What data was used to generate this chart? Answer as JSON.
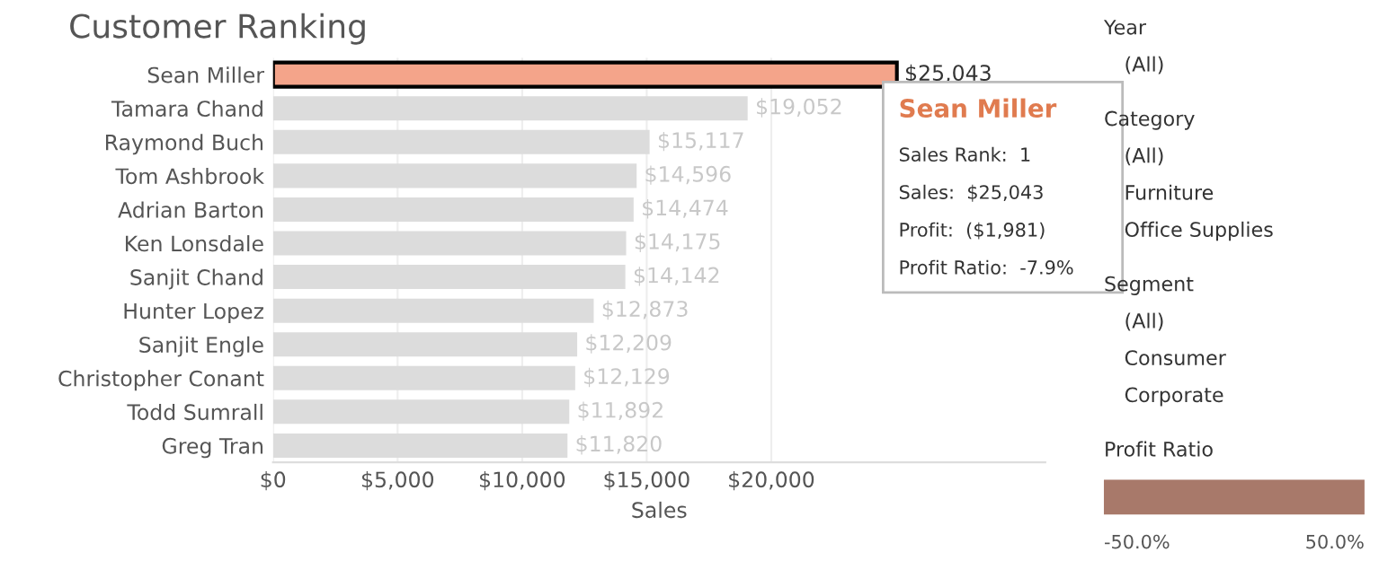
{
  "chart_data": [
    {
      "type": "bar",
      "orientation": "horizontal",
      "title": "Customer Ranking",
      "xlabel": "Sales",
      "categories": [
        "Sean Miller",
        "Tamara Chand",
        "Raymond Buch",
        "Tom Ashbrook",
        "Adrian Barton",
        "Ken Lonsdale",
        "Sanjit Chand",
        "Hunter Lopez",
        "Sanjit Engle",
        "Christopher Conant",
        "Todd Sumrall",
        "Greg Tran"
      ],
      "values": [
        25043,
        19052,
        15117,
        14596,
        14474,
        14175,
        14142,
        12873,
        12209,
        12129,
        11892,
        11820
      ],
      "value_labels": [
        "$25,043",
        "$19,052",
        "$15,117",
        "$14,596",
        "$14,474",
        "$14,175",
        "$14,142",
        "$12,873",
        "$12,209",
        "$12,129",
        "$11,892",
        "$11,820"
      ],
      "colors": [
        "#f4a48a",
        "#dcdcdc",
        "#dcdcdc",
        "#dcdcdc",
        "#dcdcdc",
        "#dcdcdc",
        "#dcdcdc",
        "#dcdcdc",
        "#dcdcdc",
        "#dcdcdc",
        "#dcdcdc",
        "#dcdcdc"
      ],
      "xlim": [
        0,
        31000
      ],
      "xticks": [
        {
          "value": 0,
          "label": "$0"
        },
        {
          "value": 5000,
          "label": "$5,000"
        },
        {
          "value": 10000,
          "label": "$10,000"
        },
        {
          "value": 15000,
          "label": "$15,000"
        },
        {
          "value": 20000,
          "label": "$20,000"
        }
      ],
      "grid": "x",
      "annotations": [
        "Sean Miller",
        "Sales Rank:  1",
        "Sales:  $25,043",
        "Profit:  ($1,981)",
        "Profit Ratio:  -7.9%"
      ]
    },
    {
      "type": "other",
      "annotations": [
        "Year",
        "(All)",
        "Category",
        "(All)",
        "Furniture",
        "Office Supplies",
        "Segment",
        "(All)",
        "Consumer",
        "Corporate",
        "Profit Ratio",
        "-50.0%",
        "50.0%"
      ]
    }
  ]
}
